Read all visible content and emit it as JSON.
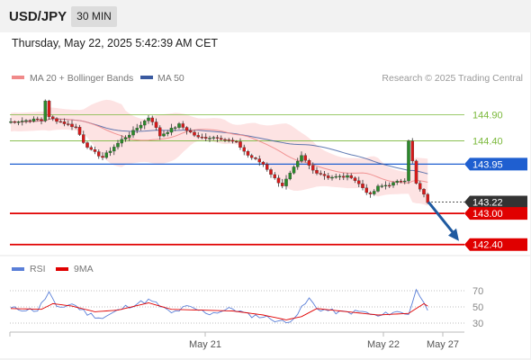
{
  "header": {
    "symbol": "USD/JPY",
    "timeframe": "30 MIN"
  },
  "datetime": "Thursday, May 22, 2025 5:42:39 AM CET",
  "legend": {
    "ma20_label": "MA 20 + Bollinger Bands",
    "ma50_label": "MA 50",
    "copyright": "Research © 2025 Trading Central"
  },
  "rsi_legend": {
    "rsi_label": "RSI",
    "ma_label": "9MA"
  },
  "colors": {
    "bull": "#2a8a2a",
    "bear": "#d81a1a",
    "ma20": "#f08a8a",
    "ma50": "#3a5aa0",
    "band": "#fde3e3",
    "support": "#e00000",
    "pivot": "#1f5fd0",
    "resistance": "#7ab83a",
    "current": "#333333",
    "rsi": "#5a7fd8",
    "rsi_ma": "#e00000",
    "arrow": "#1f5aa0"
  },
  "chart_data": {
    "type": "candlestick",
    "symbol": "USD/JPY",
    "interval": "30 MIN",
    "y_range": [
      142.17,
      145.24
    ],
    "candle_count": 110,
    "anchors": [
      [
        0,
        144.76
      ],
      [
        8,
        144.81
      ],
      [
        9,
        144.79
      ],
      [
        10,
        145.18
      ],
      [
        11,
        144.85
      ],
      [
        12,
        144.82
      ],
      [
        18,
        144.66
      ],
      [
        20,
        144.38
      ],
      [
        22,
        144.21
      ],
      [
        25,
        144.08
      ],
      [
        30,
        144.42
      ],
      [
        33,
        144.58
      ],
      [
        37,
        144.85
      ],
      [
        38,
        144.78
      ],
      [
        40,
        144.5
      ],
      [
        45,
        144.71
      ],
      [
        50,
        144.46
      ],
      [
        55,
        144.47
      ],
      [
        60,
        144.36
      ],
      [
        63,
        144.12
      ],
      [
        67,
        143.95
      ],
      [
        70,
        143.67
      ],
      [
        72,
        143.54
      ],
      [
        74,
        143.76
      ],
      [
        77,
        144.1
      ],
      [
        80,
        143.83
      ],
      [
        84,
        143.7
      ],
      [
        90,
        143.71
      ],
      [
        95,
        143.35
      ],
      [
        97,
        143.51
      ],
      [
        100,
        143.56
      ],
      [
        104,
        143.65
      ],
      [
        105,
        144.41
      ],
      [
        106,
        144.0
      ],
      [
        107,
        143.57
      ],
      [
        109,
        143.35
      ],
      [
        110,
        143.22
      ]
    ],
    "levels": [
      {
        "name": "resistance",
        "value": 144.9,
        "label": "144.90"
      },
      {
        "name": "resistance",
        "value": 144.4,
        "label": "144.40"
      },
      {
        "name": "pivot",
        "value": 143.95,
        "label": "143.95"
      },
      {
        "name": "current",
        "value": 143.22,
        "label": "143.22"
      },
      {
        "name": "support",
        "value": 143.0,
        "label": "143.00"
      },
      {
        "name": "support",
        "value": 142.4,
        "label": "142.40"
      }
    ],
    "forecast_arrow": {
      "from_value": 143.22,
      "to_value": 142.47
    },
    "x_labels": [
      "May 21",
      "May 22",
      "May 27"
    ],
    "rsi": {
      "y_range": [
        20,
        80
      ],
      "levels": [
        {
          "value": 70,
          "label": "70"
        },
        {
          "value": 50,
          "label": "50"
        },
        {
          "value": 30,
          "label": "30"
        }
      ],
      "rsi_anchors": [
        [
          0,
          48
        ],
        [
          7,
          46
        ],
        [
          10,
          68
        ],
        [
          12,
          48
        ],
        [
          16,
          54
        ],
        [
          20,
          42
        ],
        [
          24,
          36
        ],
        [
          30,
          50
        ],
        [
          36,
          58
        ],
        [
          38,
          54
        ],
        [
          42,
          42
        ],
        [
          46,
          50
        ],
        [
          52,
          42
        ],
        [
          58,
          48
        ],
        [
          62,
          40
        ],
        [
          66,
          38
        ],
        [
          70,
          33
        ],
        [
          72,
          30
        ],
        [
          75,
          42
        ],
        [
          78,
          60
        ],
        [
          80,
          48
        ],
        [
          86,
          43
        ],
        [
          92,
          44
        ],
        [
          96,
          38
        ],
        [
          100,
          44
        ],
        [
          104,
          42
        ],
        [
          106,
          70
        ],
        [
          108,
          58
        ],
        [
          109,
          48
        ],
        [
          110,
          42
        ]
      ],
      "ma_anchors": [
        [
          0,
          48
        ],
        [
          8,
          47
        ],
        [
          11,
          54
        ],
        [
          16,
          51
        ],
        [
          22,
          44
        ],
        [
          28,
          46
        ],
        [
          36,
          55
        ],
        [
          42,
          47
        ],
        [
          50,
          46
        ],
        [
          58,
          45
        ],
        [
          66,
          40
        ],
        [
          72,
          34
        ],
        [
          76,
          38
        ],
        [
          80,
          48
        ],
        [
          88,
          44
        ],
        [
          96,
          40
        ],
        [
          104,
          42
        ],
        [
          108,
          54
        ],
        [
          110,
          48
        ]
      ]
    }
  }
}
